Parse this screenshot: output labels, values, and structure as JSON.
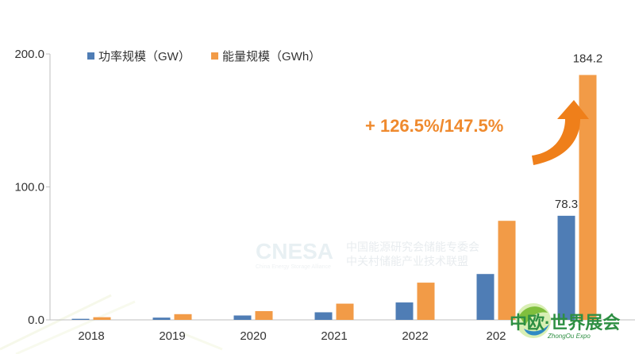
{
  "chart_data": {
    "type": "bar",
    "categories": [
      "2018",
      "2019",
      "2020",
      "2021",
      "2022",
      "2023"
    ],
    "series": [
      {
        "name": "功率规模（GW）",
        "color": "#4f7db5",
        "values": [
          0.8,
          1.7,
          3.3,
          5.7,
          13.1,
          34.5
        ]
      },
      {
        "name": "能量规模（GWh）",
        "color": "#f29b47",
        "values": [
          2.0,
          4.3,
          6.6,
          12.2,
          28.0,
          74.5
        ]
      }
    ],
    "data_labels": {
      "2024_gw": "78.3",
      "2024_gwh": "184.2"
    },
    "extra_bars": {
      "gw": 78.3,
      "gwh": 184.2
    },
    "yticks": [
      "0.0",
      "100.0",
      "200.0"
    ],
    "ylim": [
      0,
      200
    ],
    "xticks": [
      "2018",
      "2019",
      "2020",
      "2021",
      "2022",
      "202"
    ],
    "annotation": "+ 126.5%/147.5%",
    "legend_position": "top-left",
    "grid": false
  },
  "watermark": {
    "brand": "CNESA",
    "line1": "中国能源研究会储能专委会",
    "line2": "中关村储能产业技术联盟",
    "small": "China Energy Storage Alliance"
  },
  "logo": {
    "text": "中欧·世界展会",
    "sub": "ZhongOu Expo"
  }
}
